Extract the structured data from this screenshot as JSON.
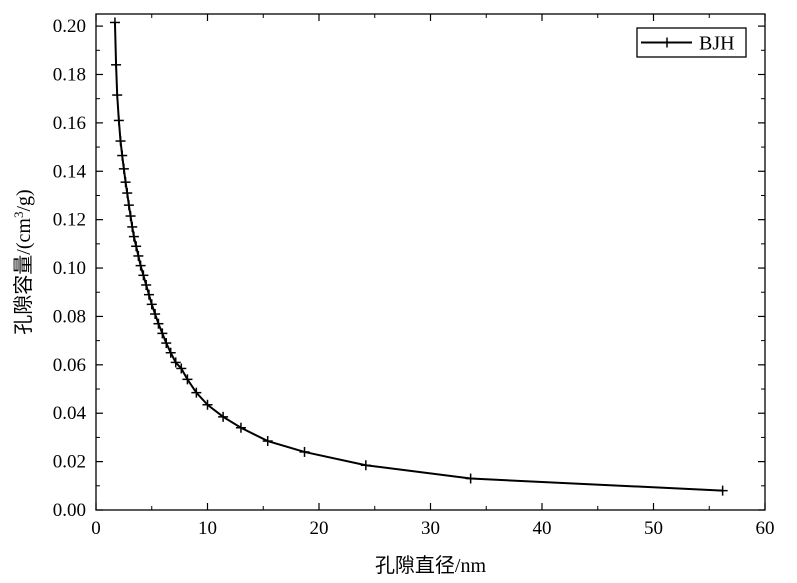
{
  "chart_data": {
    "type": "line",
    "title": "",
    "xlabel": "孔隙直径/nm",
    "ylabel_main": "孔隙容量/(cm",
    "ylabel_sup": "3",
    "ylabel_tail": "/g)",
    "xlim": [
      0,
      60
    ],
    "ylim": [
      0,
      0.205
    ],
    "x_ticks": [
      0,
      10,
      20,
      30,
      40,
      50,
      60
    ],
    "x_tick_labels": [
      "0",
      "10",
      "20",
      "30",
      "40",
      "50",
      "60"
    ],
    "y_ticks": [
      0,
      0.02,
      0.04,
      0.06,
      0.08,
      0.1,
      0.12,
      0.14,
      0.16,
      0.18,
      0.2
    ],
    "y_tick_labels": [
      "0.00",
      "0.02",
      "0.04",
      "0.06",
      "0.08",
      "0.10",
      "0.12",
      "0.14",
      "0.16",
      "0.18",
      "0.20"
    ],
    "grid": false,
    "legend_position": "top-right",
    "series": [
      {
        "name": "BJH",
        "color": "#000000",
        "marker": "plus",
        "x": [
          1.7,
          1.8,
          1.9,
          2.05,
          2.2,
          2.35,
          2.5,
          2.65,
          2.8,
          2.95,
          3.1,
          3.25,
          3.4,
          3.6,
          3.8,
          4.0,
          4.25,
          4.5,
          4.75,
          5.0,
          5.3,
          5.6,
          5.95,
          6.3,
          6.7,
          7.15,
          7.65,
          8.2,
          9.0,
          10.0,
          11.4,
          13.0,
          15.4,
          18.7,
          24.2,
          33.6,
          56.2
        ],
        "y": [
          0.2015,
          0.184,
          0.1715,
          0.161,
          0.1525,
          0.1465,
          0.141,
          0.1355,
          0.131,
          0.126,
          0.1215,
          0.117,
          0.113,
          0.109,
          0.105,
          0.101,
          0.097,
          0.093,
          0.089,
          0.085,
          0.081,
          0.077,
          0.073,
          0.069,
          0.065,
          0.061,
          0.0585,
          0.054,
          0.0485,
          0.0435,
          0.0385,
          0.034,
          0.0285,
          0.024,
          0.0185,
          0.013,
          0.008
        ]
      }
    ]
  }
}
